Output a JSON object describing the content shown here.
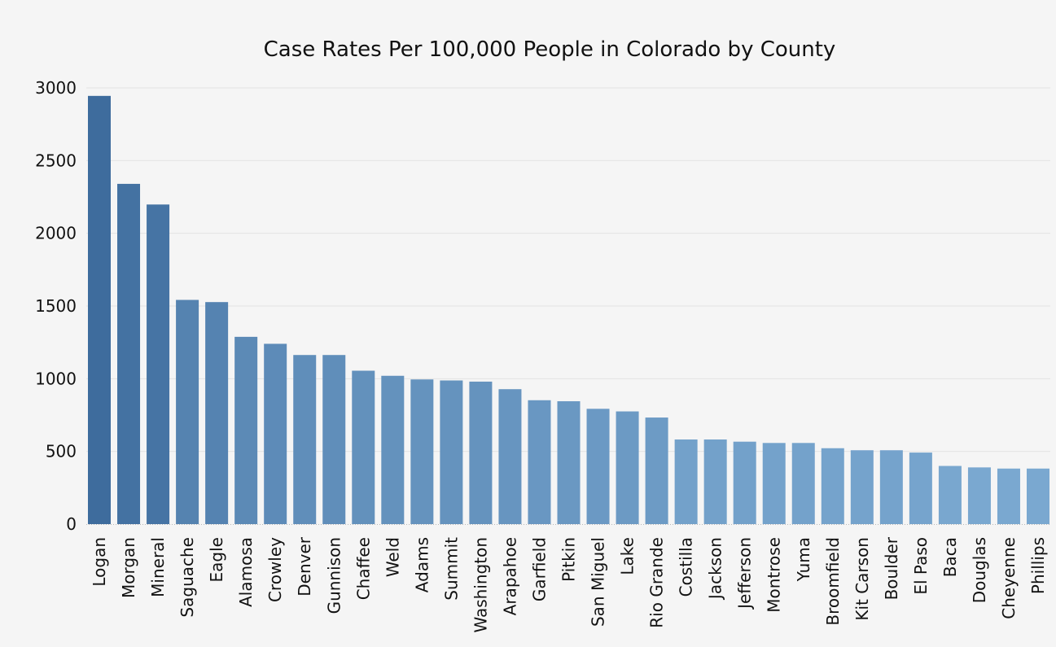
{
  "chart_data": {
    "type": "bar",
    "title": "Case Rates Per 100,000 People in Colorado by County",
    "xlabel": "",
    "ylabel": "",
    "ylim": [
      0,
      3000
    ],
    "yticks": [
      0,
      500,
      1000,
      1500,
      2000,
      2500,
      3000
    ],
    "grid": true,
    "legend": "none",
    "categories": [
      "Logan",
      "Morgan",
      "Mineral",
      "Saguache",
      "Eagle",
      "Alamosa",
      "Crowley",
      "Denver",
      "Gunnison",
      "Chaffee",
      "Weld",
      "Adams",
      "Summit",
      "Washington",
      "Arapahoe",
      "Garfield",
      "Pitkin",
      "San Miguel",
      "Lake",
      "Rio Grande",
      "Costilla",
      "Jackson",
      "Jefferson",
      "Montrose",
      "Yuma",
      "Broomfield",
      "Kit Carson",
      "Boulder",
      "El Paso",
      "Baca",
      "Douglas",
      "Cheyenne",
      "Phillips"
    ],
    "values": [
      2945,
      2340,
      2198,
      1542,
      1527,
      1288,
      1240,
      1163,
      1163,
      1055,
      1020,
      995,
      988,
      980,
      928,
      852,
      845,
      793,
      775,
      733,
      582,
      582,
      567,
      558,
      558,
      522,
      508,
      508,
      492,
      400,
      390,
      382,
      382
    ],
    "colors": {
      "background": "#f5f5f5",
      "grid": "#e3e3e3",
      "axis": "#b8b8b8",
      "bar_dark": "#3e6c9d",
      "bar_light": "#7aa8d0"
    }
  }
}
